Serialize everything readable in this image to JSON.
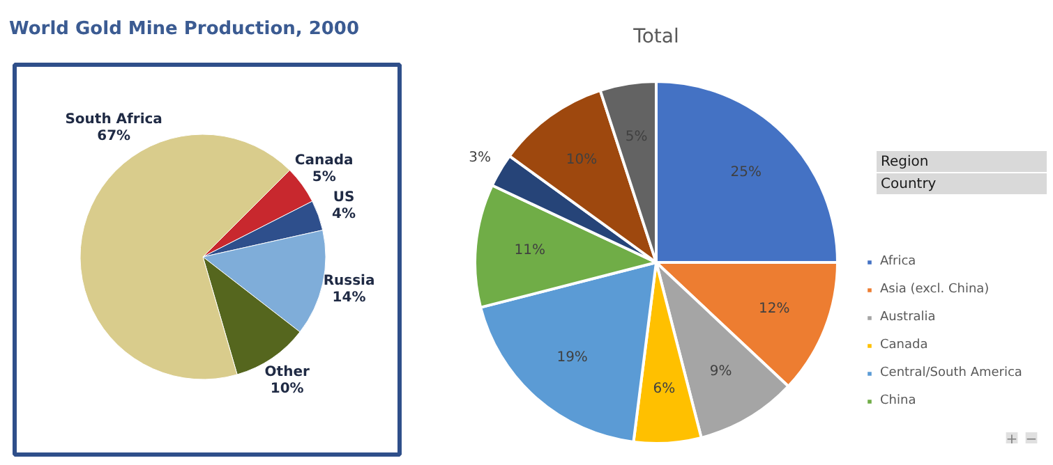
{
  "chart_data": [
    {
      "type": "pie",
      "title": "World Gold Mine Production, 2000",
      "categories": [
        "Canada",
        "US",
        "Russia",
        "Other",
        "South Africa"
      ],
      "values": [
        5,
        4,
        14,
        10,
        67
      ],
      "value_labels": [
        "5%",
        "4%",
        "14%",
        "10%",
        "67%"
      ],
      "colors": [
        "#c8282e",
        "#2e4f8c",
        "#7fadd9",
        "#55661e",
        "#d9cc8c"
      ]
    },
    {
      "type": "pie",
      "title": "Total",
      "categories": [
        "Africa",
        "Asia (excl. China)",
        "Australia",
        "Canada",
        "Central/South America",
        "China",
        null,
        null,
        null
      ],
      "values": [
        25,
        12,
        9,
        6,
        19,
        11,
        3,
        10,
        5
      ],
      "value_labels": [
        "25%",
        "12%",
        "9%",
        "6%",
        "19%",
        "11%",
        "3%",
        "10%",
        "5%"
      ],
      "colors": [
        "#4472c4",
        "#ed7d31",
        "#a5a5a5",
        "#ffc000",
        "#5b9bd5",
        "#70ad47",
        "#264478",
        "#9e480e",
        "#636363"
      ],
      "legend": "right",
      "annotations": [
        "Region",
        "Country",
        "+",
        "−"
      ]
    }
  ]
}
